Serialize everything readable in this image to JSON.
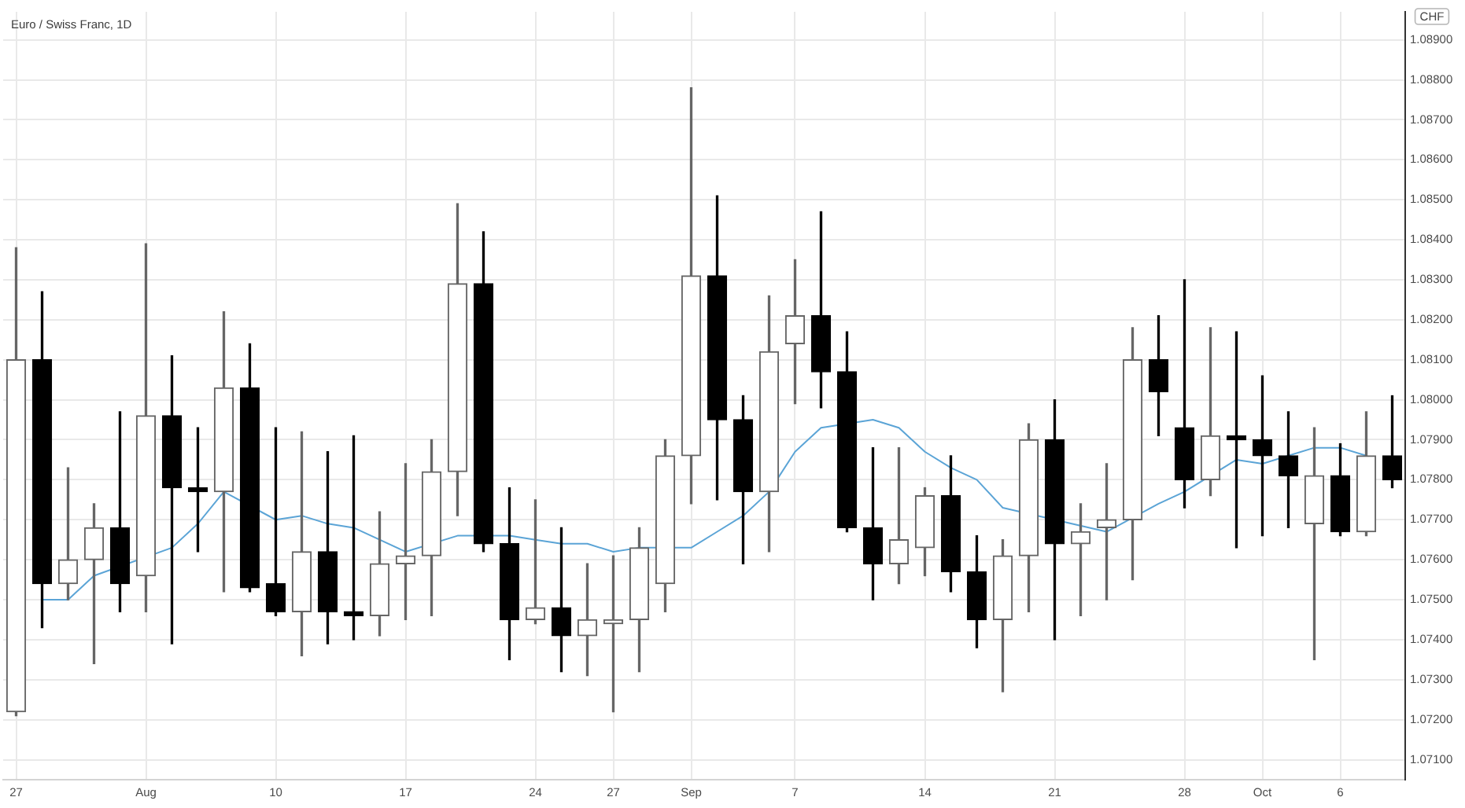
{
  "chart_data": {
    "type": "candlestick",
    "title": "Euro / Swiss Franc, 1D",
    "ylabel": "CHF",
    "categories": [
      "27",
      null,
      null,
      null,
      null,
      "Aug",
      null,
      null,
      null,
      null,
      "10",
      null,
      null,
      null,
      null,
      "17",
      null,
      null,
      null,
      null,
      "24",
      null,
      null,
      "27",
      null,
      null,
      "Sep",
      null,
      null,
      null,
      "7",
      null,
      null,
      null,
      null,
      "14",
      null,
      null,
      null,
      null,
      "21",
      null,
      null,
      null,
      null,
      "28",
      null,
      null,
      "Oct",
      null,
      null,
      "6",
      null,
      null
    ],
    "ohlc": [
      [
        1.0722,
        1.0838,
        1.0721,
        1.081
      ],
      [
        1.081,
        1.0827,
        1.0743,
        1.0754
      ],
      [
        1.0754,
        1.0783,
        1.075,
        1.076
      ],
      [
        1.076,
        1.0774,
        1.0734,
        1.0768
      ],
      [
        1.0768,
        1.0797,
        1.0747,
        1.0754
      ],
      [
        1.0756,
        1.0839,
        1.0747,
        1.0796
      ],
      [
        1.0796,
        1.0811,
        1.0739,
        1.0778
      ],
      [
        1.0778,
        1.0793,
        1.0762,
        1.0777
      ],
      [
        1.0777,
        1.0822,
        1.0752,
        1.0803
      ],
      [
        1.0803,
        1.0814,
        1.0752,
        1.0753
      ],
      [
        1.0754,
        1.0793,
        1.0746,
        1.0747
      ],
      [
        1.0747,
        1.0792,
        1.0736,
        1.0762
      ],
      [
        1.0762,
        1.0787,
        1.0739,
        1.0747
      ],
      [
        1.0747,
        1.0791,
        1.074,
        1.0746
      ],
      [
        1.0746,
        1.0772,
        1.0741,
        1.0759
      ],
      [
        1.0759,
        1.0784,
        1.0745,
        1.0761
      ],
      [
        1.0761,
        1.079,
        1.0746,
        1.0782
      ],
      [
        1.0782,
        1.0849,
        1.0771,
        1.0829
      ],
      [
        1.0829,
        1.0842,
        1.0762,
        1.0764
      ],
      [
        1.0764,
        1.0778,
        1.0735,
        1.0745
      ],
      [
        1.0745,
        1.0775,
        1.0744,
        1.0748
      ],
      [
        1.0748,
        1.0768,
        1.0732,
        1.0741
      ],
      [
        1.0741,
        1.0759,
        1.0731,
        1.0745
      ],
      [
        1.0744,
        1.0761,
        1.0722,
        1.0745
      ],
      [
        1.0745,
        1.0768,
        1.0732,
        1.0763
      ],
      [
        1.0754,
        1.079,
        1.0747,
        1.0786
      ],
      [
        1.0786,
        1.0878,
        1.0774,
        1.0831
      ],
      [
        1.0831,
        1.0851,
        1.0775,
        1.0795
      ],
      [
        1.0795,
        1.0801,
        1.0759,
        1.0777
      ],
      [
        1.0777,
        1.0826,
        1.0762,
        1.0812
      ],
      [
        1.0814,
        1.0835,
        1.0799,
        1.0821
      ],
      [
        1.0821,
        1.0847,
        1.0798,
        1.0807
      ],
      [
        1.0807,
        1.0817,
        1.0767,
        1.0768
      ],
      [
        1.0768,
        1.0788,
        1.075,
        1.0759
      ],
      [
        1.0759,
        1.0788,
        1.0754,
        1.0765
      ],
      [
        1.0763,
        1.0778,
        1.0756,
        1.0776
      ],
      [
        1.0776,
        1.0786,
        1.0752,
        1.0757
      ],
      [
        1.0757,
        1.0766,
        1.0738,
        1.0745
      ],
      [
        1.0745,
        1.0765,
        1.0727,
        1.0761
      ],
      [
        1.0761,
        1.0794,
        1.0747,
        1.079
      ],
      [
        1.079,
        1.08,
        1.074,
        1.0764
      ],
      [
        1.0764,
        1.0774,
        1.0746,
        1.0767
      ],
      [
        1.0768,
        1.0784,
        1.075,
        1.077
      ],
      [
        1.077,
        1.0818,
        1.0755,
        1.081
      ],
      [
        1.081,
        1.0821,
        1.0791,
        1.0802
      ],
      [
        1.0793,
        1.083,
        1.0773,
        1.078
      ],
      [
        1.078,
        1.0818,
        1.0776,
        1.0791
      ],
      [
        1.0791,
        1.0817,
        1.0763,
        1.079
      ],
      [
        1.079,
        1.0806,
        1.0766,
        1.0786
      ],
      [
        1.0786,
        1.0797,
        1.0768,
        1.0781
      ],
      [
        1.0769,
        1.0793,
        1.0735,
        1.0781
      ],
      [
        1.0781,
        1.0789,
        1.0766,
        1.0767
      ],
      [
        1.0767,
        1.0797,
        1.0766,
        1.0786
      ],
      [
        1.0786,
        1.0801,
        1.0778,
        1.078
      ]
    ],
    "colors": [
      "#666666",
      "#000000",
      "#666666",
      "#666666",
      "#000000",
      "#666666",
      "#000000",
      "#000000",
      "#666666",
      "#000000",
      "#000000",
      "#666666",
      "#000000",
      "#000000",
      "#666666",
      "#666666",
      "#666666",
      "#666666",
      "#000000",
      "#000000",
      "#666666",
      "#000000",
      "#666666",
      "#666666",
      "#666666",
      "#666666",
      "#666666",
      "#000000",
      "#000000",
      "#666666",
      "#666666",
      "#000000",
      "#000000",
      "#000000",
      "#666666",
      "#666666",
      "#000000",
      "#000000",
      "#666666",
      "#666666",
      "#000000",
      "#666666",
      "#666666",
      "#666666",
      "#000000",
      "#000000",
      "#666666",
      "#000000",
      "#000000",
      "#000000",
      "#666666",
      "#000000",
      "#666666",
      "#000000"
    ],
    "series": [
      {
        "type": "line",
        "color": "#5ba4d6",
        "values": [
          null,
          1.075,
          1.075,
          1.0756,
          null,
          null,
          1.0763,
          1.0769,
          1.0777,
          null,
          1.077,
          1.0771,
          1.0769,
          1.0768,
          1.0765,
          1.0762,
          null,
          1.0766,
          null,
          1.0766,
          1.0765,
          1.0764,
          1.0764,
          1.0762,
          1.0763,
          null,
          1.0763,
          1.0767,
          1.0771,
          1.0777,
          1.0787,
          1.0793,
          null,
          1.0795,
          1.0793,
          1.0787,
          1.0783,
          1.078,
          1.0773,
          null,
          null,
          null,
          1.0767,
          null,
          1.0774,
          1.0777,
          null,
          1.0785,
          1.0784,
          1.0786,
          1.0788,
          1.0788,
          1.0786,
          null
        ]
      }
    ],
    "ylim": [
      1.0705,
      1.0897
    ],
    "yticks": [
      {
        "value": 1.071,
        "label": "1.07100"
      },
      {
        "value": 1.072,
        "label": "1.07200"
      },
      {
        "value": 1.073,
        "label": "1.07300"
      },
      {
        "value": 1.074,
        "label": "1.07400"
      },
      {
        "value": 1.075,
        "label": "1.07500"
      },
      {
        "value": 1.076,
        "label": "1.07600"
      },
      {
        "value": 1.077,
        "label": "1.07700"
      },
      {
        "value": 1.078,
        "label": "1.07800"
      },
      {
        "value": 1.079,
        "label": "1.07900"
      },
      {
        "value": 1.08,
        "label": "1.08000"
      },
      {
        "value": 1.081,
        "label": "1.08100"
      },
      {
        "value": 1.082,
        "label": "1.08200"
      },
      {
        "value": 1.083,
        "label": "1.08300"
      },
      {
        "value": 1.084,
        "label": "1.08400"
      },
      {
        "value": 1.085,
        "label": "1.08500"
      },
      {
        "value": 1.086,
        "label": "1.08600"
      },
      {
        "value": 1.087,
        "label": "1.08700"
      },
      {
        "value": 1.088,
        "label": "1.08800"
      },
      {
        "value": 1.089,
        "label": "1.08900"
      }
    ],
    "grid": true
  }
}
